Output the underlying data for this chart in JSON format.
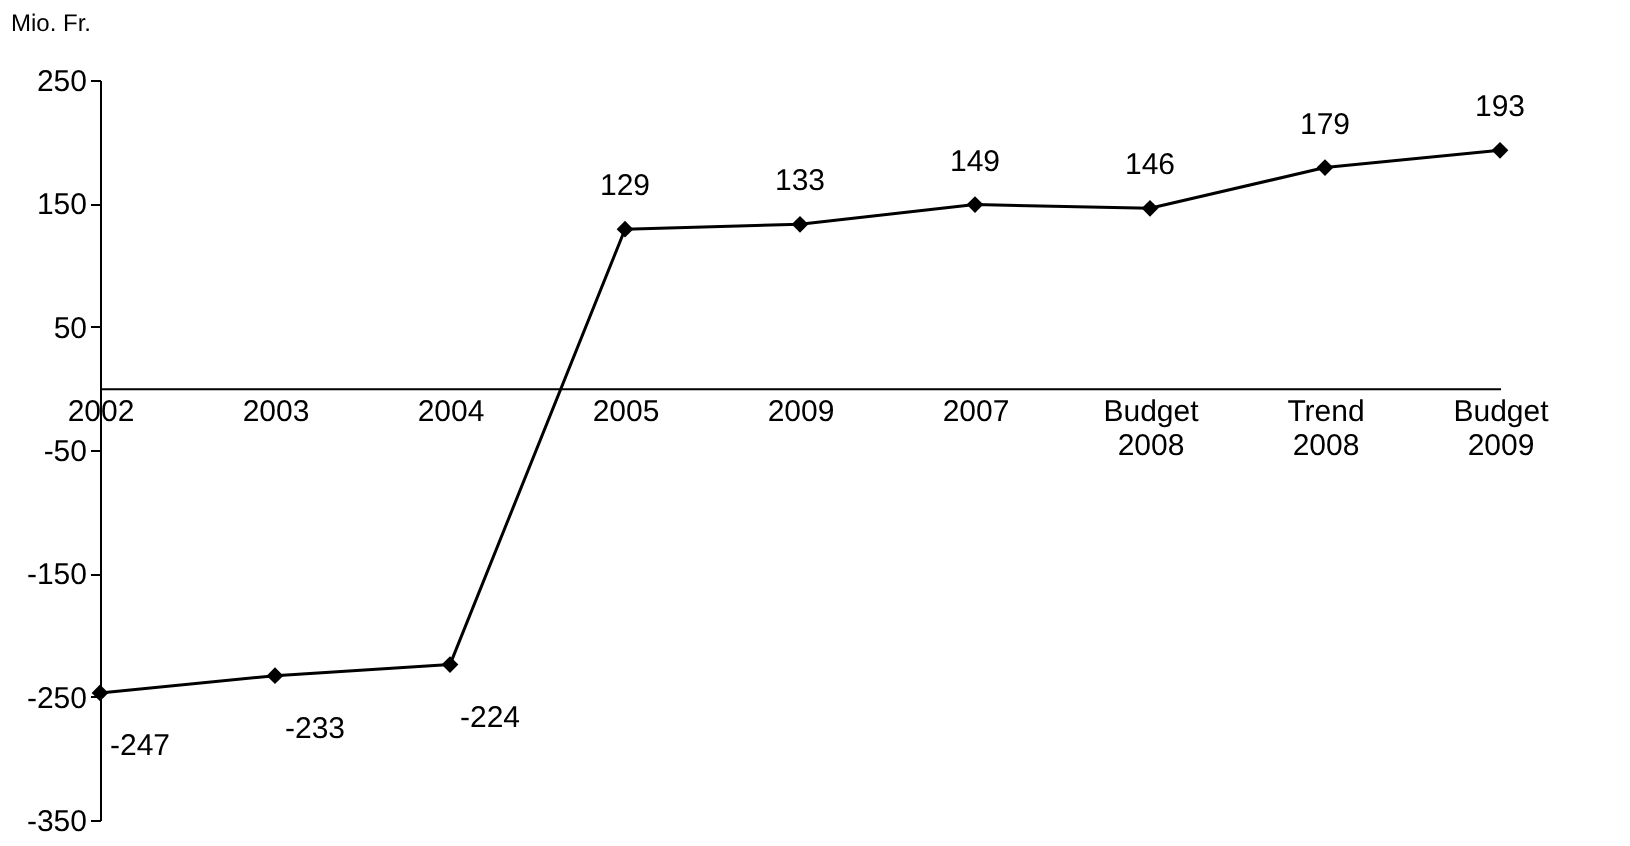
{
  "chart_data": {
    "type": "line",
    "ylabel": "Mio. Fr.",
    "categories": [
      "2002",
      "2003",
      "2004",
      "2005",
      "2009",
      "2007",
      "Budget 2008",
      "Trend 2008",
      "Budget 2009"
    ],
    "series": [
      {
        "color": "#000000",
        "values": [
          -247,
          -233,
          -224,
          129,
          133,
          149,
          146,
          179,
          193
        ]
      }
    ],
    "ylim": [
      -350,
      250
    ],
    "yticks": [
      -350,
      -250,
      -150,
      -50,
      50,
      150,
      250
    ],
    "marker": "diamond",
    "line_style": "solid",
    "data_labels": true,
    "grid": false
  }
}
